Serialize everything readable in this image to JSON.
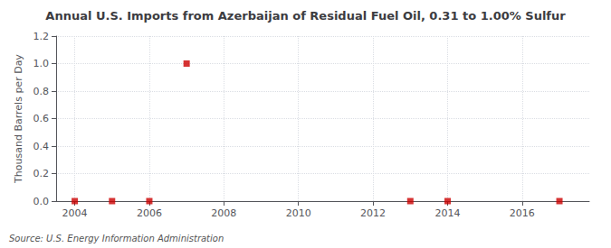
{
  "chart_data": {
    "type": "scatter",
    "title": "Annual U.S. Imports from Azerbaijan of Residual Fuel Oil, 0.31 to 1.00% Sulfur",
    "ylabel": "Thousand Barrels per Day",
    "source": "Source: U.S. Energy Information Administration",
    "x": [
      2004,
      2005,
      2006,
      2007,
      2013,
      2014,
      2017
    ],
    "values": [
      0.0,
      0.0,
      0.0,
      1.0,
      0.0,
      0.0,
      0.0
    ],
    "color": "#cc0000",
    "marker": "square",
    "xlim": [
      2003.5,
      2017.8
    ],
    "xticks": [
      2004,
      2006,
      2008,
      2010,
      2012,
      2014,
      2016
    ],
    "ylim": [
      0,
      1.2
    ],
    "yticks": [
      {
        "value": 0,
        "label": "0.0"
      },
      0.2,
      0.4,
      0.6,
      0.8,
      {
        "value": 1,
        "label": "1.0"
      },
      1.2
    ],
    "grid": true
  }
}
